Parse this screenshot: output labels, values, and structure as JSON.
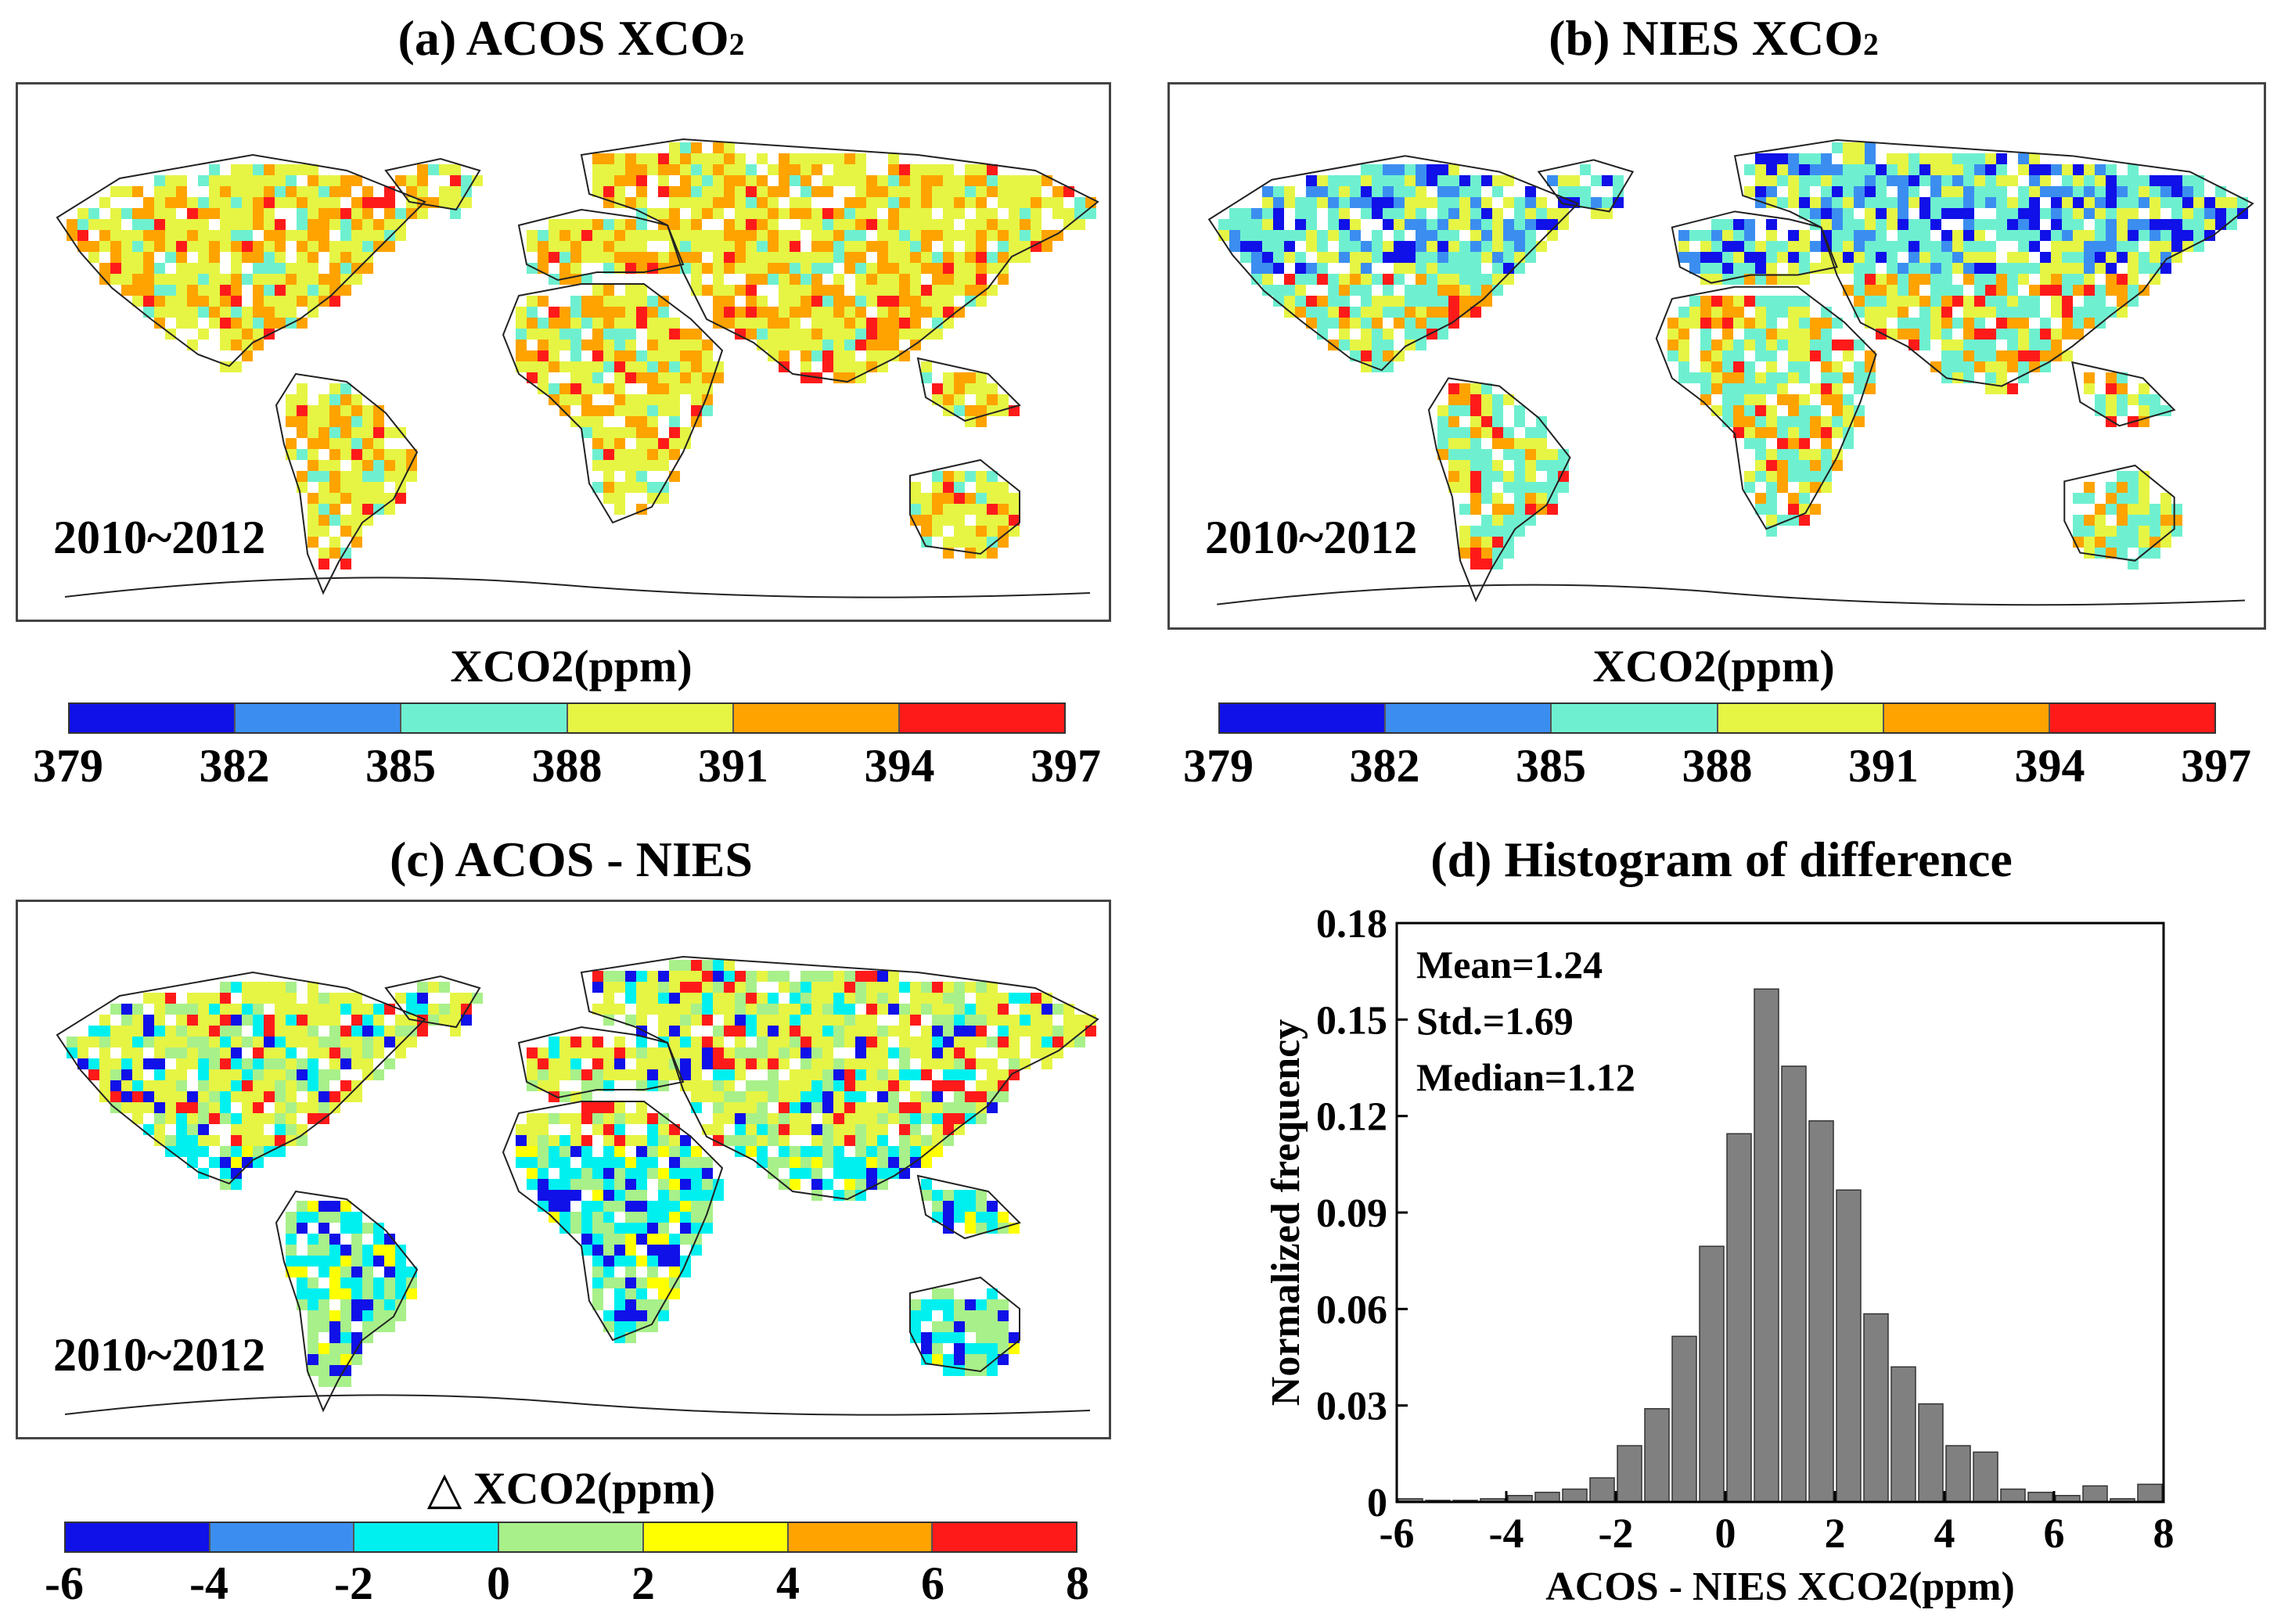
{
  "panels": {
    "a": {
      "title_main": "(a) ACOS XCO",
      "title_sub": "2",
      "period": "2010~2012"
    },
    "b": {
      "title_main": "(b) NIES XCO",
      "title_sub": "2",
      "period": "2010~2012"
    },
    "c": {
      "title_main": "(c) ACOS - NIES",
      "period": "2010~2012"
    },
    "d": {
      "title": "(d) Histogram of difference"
    }
  },
  "colorbar_xco2": {
    "label": "XCO2(ppm)",
    "ticks": [
      "379",
      "382",
      "385",
      "388",
      "391",
      "394",
      "397"
    ],
    "colors": [
      "#1010e8",
      "#3b8ef0",
      "#6ef0d0",
      "#e6f544",
      "#ffa300",
      "#ff1a1a"
    ]
  },
  "colorbar_diff": {
    "label": "△ XCO2(ppm)",
    "ticks": [
      "-6",
      "-4",
      "-2",
      "0",
      "2",
      "4",
      "6",
      "8"
    ],
    "colors": [
      "#1010e8",
      "#3b8ef0",
      "#00f0f0",
      "#a8f08a",
      "#ffff00",
      "#ffa300",
      "#ff1a1a"
    ]
  },
  "map_colors": {
    "a": [
      "#ffa300",
      "#ffa300",
      "#e6f544",
      "#e6f544",
      "#e6f544",
      "#6ef0d0",
      "#ff1a1a"
    ],
    "b": [
      "#6ef0d0",
      "#6ef0d0",
      "#e6f544",
      "#1010e8",
      "#3b8ef0",
      "#ffa300",
      "#ff1a1a"
    ],
    "c": [
      "#e6f544",
      "#ffff00",
      "#a8f08a",
      "#00f0f0",
      "#a8f08a",
      "#1010e8",
      "#ff1a1a"
    ]
  },
  "chart_data": {
    "type": "bar",
    "title": "(d) Histogram of difference",
    "xlabel": "ACOS - NIES XCO2(ppm)",
    "ylabel": "Normalized frequency",
    "xlim": [
      -6,
      8
    ],
    "ylim": [
      0,
      0.18
    ],
    "xticks": [
      "-6",
      "-4",
      "-2",
      "0",
      "2",
      "4",
      "6",
      "8"
    ],
    "yticks": [
      "0",
      "0.03",
      "0.06",
      "0.09",
      "0.12",
      "0.15",
      "0.18"
    ],
    "bin_width": 0.5,
    "bin_centers": [
      -5.75,
      -5.25,
      -4.75,
      -4.25,
      -3.75,
      -3.25,
      -2.75,
      -2.25,
      -1.75,
      -1.25,
      -0.75,
      -0.25,
      0.25,
      0.75,
      1.25,
      1.75,
      2.25,
      2.75,
      3.25,
      3.75,
      4.25,
      4.75,
      5.25,
      5.75,
      6.25,
      6.75,
      7.25,
      7.75
    ],
    "values": [
      0.001,
      0.0005,
      0.0005,
      0.001,
      0.002,
      0.003,
      0.004,
      0.0075,
      0.0175,
      0.029,
      0.0515,
      0.0795,
      0.1145,
      0.1595,
      0.1355,
      0.1185,
      0.097,
      0.0585,
      0.042,
      0.0305,
      0.0175,
      0.0155,
      0.004,
      0.003,
      0.002,
      0.005,
      0.001,
      0.0055
    ],
    "bar_color": "#808080",
    "annotations": [
      "Mean=1.24",
      "Std.=1.69",
      "Median=1.12"
    ]
  }
}
